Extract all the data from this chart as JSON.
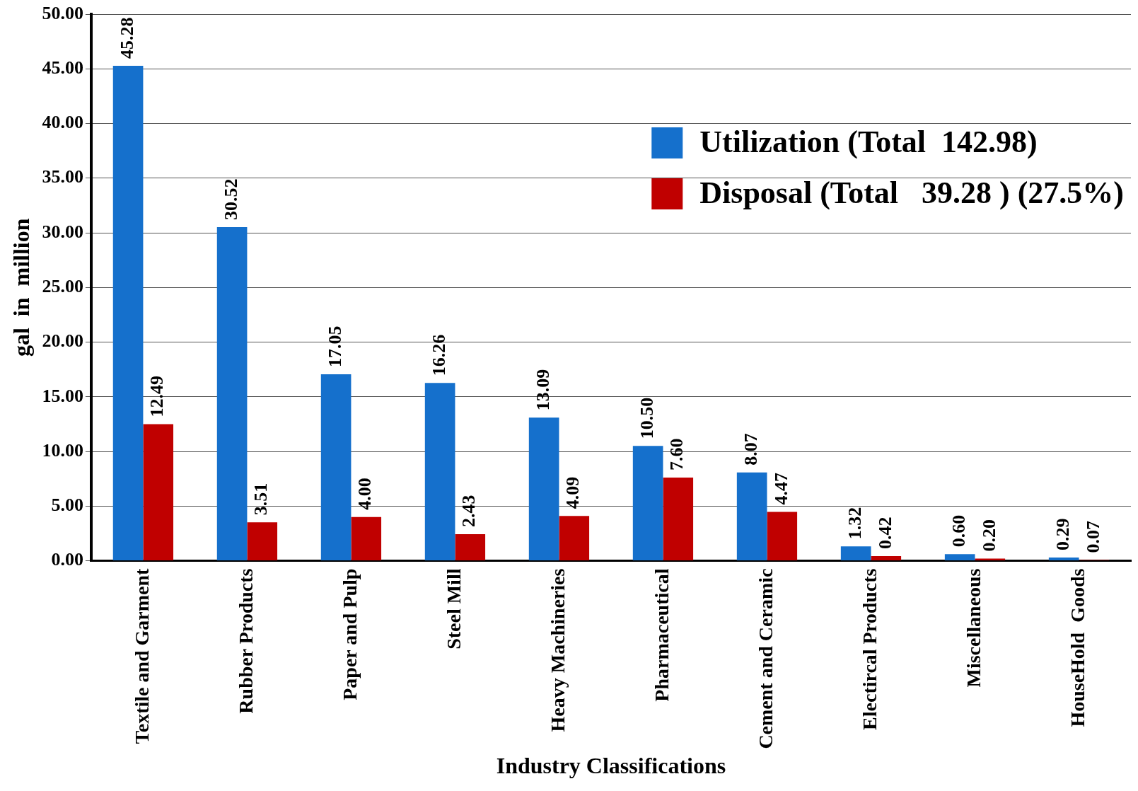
{
  "chart_data": {
    "type": "bar",
    "xlabel": "Industry Classifications",
    "ylabel": "gal  in  million",
    "categories": [
      "Textile and Garment",
      "Rubber Products",
      "Paper and Pulp",
      "Steel Mill",
      "Heavy Machineries",
      "Pharmaceutical",
      "Cement and Ceramic",
      "Electircal Products",
      "Miscellaneous",
      "HouseHold  Goods"
    ],
    "series": [
      {
        "name": "Utilization (Total  142.98)",
        "color": "#1570cc",
        "values": [
          45.28,
          30.52,
          17.05,
          16.26,
          13.09,
          10.5,
          8.07,
          1.32,
          0.6,
          0.29
        ],
        "value_labels": [
          "45.28",
          "30.52",
          "17.05",
          "16.26",
          "13.09",
          "10.50",
          "8.07",
          "1.32",
          "0.60",
          "0.29"
        ]
      },
      {
        "name": "Disposal (Total   39.28 ) (27.5%)",
        "color": "#c00000",
        "values": [
          12.49,
          3.51,
          4.0,
          2.43,
          4.09,
          7.6,
          4.47,
          0.42,
          0.2,
          0.07
        ],
        "value_labels": [
          "12.49",
          "3.51",
          "4.00",
          "2.43",
          "4.09",
          "7.60",
          "4.47",
          "0.42",
          "0.20",
          "0.07"
        ]
      }
    ],
    "ylim": [
      0,
      50
    ],
    "yticks": [
      {
        "value": 0,
        "label": "0.00"
      },
      {
        "value": 5,
        "label": "5.00"
      },
      {
        "value": 10,
        "label": "10.00"
      },
      {
        "value": 15,
        "label": "15.00"
      },
      {
        "value": 20,
        "label": "20.00"
      },
      {
        "value": 25,
        "label": "25.00"
      },
      {
        "value": 30,
        "label": "30.00"
      },
      {
        "value": 35,
        "label": "35.00"
      },
      {
        "value": 40,
        "label": "40.00"
      },
      {
        "value": 45,
        "label": "45.00"
      },
      {
        "value": 50,
        "label": "50.00"
      }
    ],
    "grid": "y",
    "legend": "top right"
  }
}
